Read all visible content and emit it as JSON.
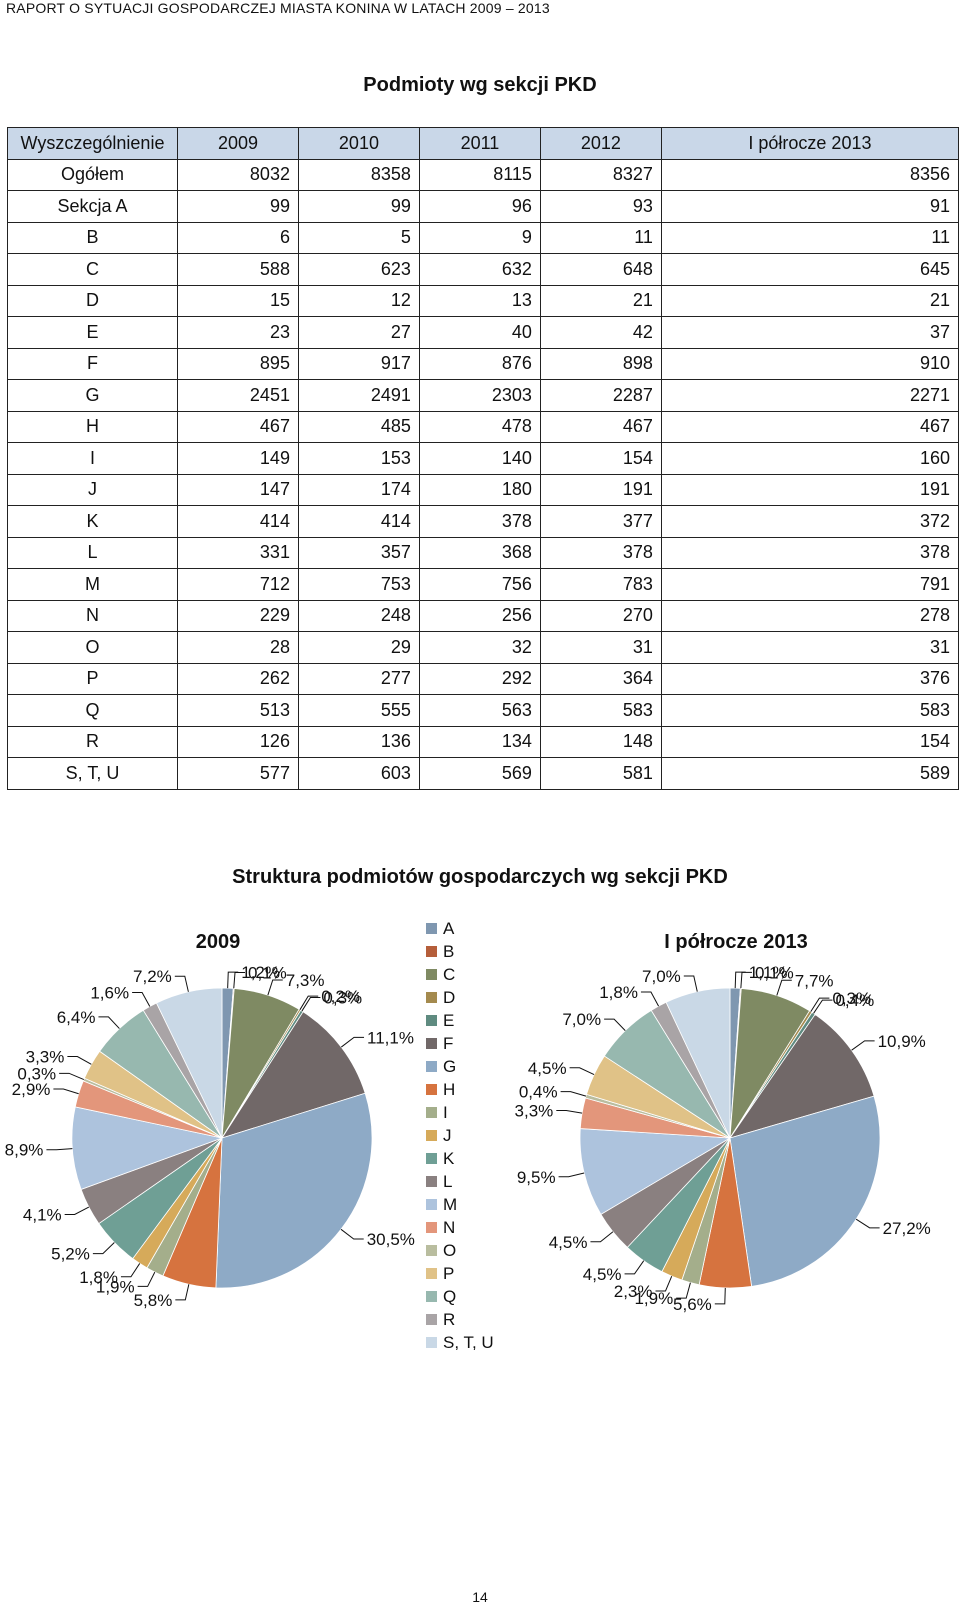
{
  "header": "RAPORT O SYTUACJI GOSPODARCZEJ MIASTA KONINA W LATACH 2009 – 2013",
  "table_title": "Podmioty wg sekcji PKD",
  "table": {
    "columns": [
      "Wyszczególnienie",
      "2009",
      "2010",
      "2011",
      "2012",
      "I półrocze 2013"
    ],
    "rows": [
      [
        "Ogółem",
        "8032",
        "8358",
        "8115",
        "8327",
        "8356"
      ],
      [
        "Sekcja A",
        "99",
        "99",
        "96",
        "93",
        "91"
      ],
      [
        "B",
        "6",
        "5",
        "9",
        "11",
        "11"
      ],
      [
        "C",
        "588",
        "623",
        "632",
        "648",
        "645"
      ],
      [
        "D",
        "15",
        "12",
        "13",
        "21",
        "21"
      ],
      [
        "E",
        "23",
        "27",
        "40",
        "42",
        "37"
      ],
      [
        "F",
        "895",
        "917",
        "876",
        "898",
        "910"
      ],
      [
        "G",
        "2451",
        "2491",
        "2303",
        "2287",
        "2271"
      ],
      [
        "H",
        "467",
        "485",
        "478",
        "467",
        "467"
      ],
      [
        "I",
        "149",
        "153",
        "140",
        "154",
        "160"
      ],
      [
        "J",
        "147",
        "174",
        "180",
        "191",
        "191"
      ],
      [
        "K",
        "414",
        "414",
        "378",
        "377",
        "372"
      ],
      [
        "L",
        "331",
        "357",
        "368",
        "378",
        "378"
      ],
      [
        "M",
        "712",
        "753",
        "756",
        "783",
        "791"
      ],
      [
        "N",
        "229",
        "248",
        "256",
        "270",
        "278"
      ],
      [
        "O",
        "28",
        "29",
        "32",
        "31",
        "31"
      ],
      [
        "P",
        "262",
        "277",
        "292",
        "364",
        "376"
      ],
      [
        "Q",
        "513",
        "555",
        "563",
        "583",
        "583"
      ],
      [
        "R",
        "126",
        "136",
        "134",
        "148",
        "154"
      ],
      [
        "S, T, U",
        "577",
        "603",
        "569",
        "581",
        "589"
      ]
    ]
  },
  "chart_title": "Struktura podmiotów gospodarczych wg sekcji PKD",
  "chart_data": [
    {
      "type": "pie",
      "title": "2009",
      "categories": [
        "A",
        "B",
        "C",
        "D",
        "E",
        "F",
        "G",
        "H",
        "I",
        "J",
        "K",
        "L",
        "M",
        "N",
        "O",
        "P",
        "Q",
        "R",
        "S, T, U"
      ],
      "values": [
        1.2,
        0.1,
        7.3,
        0.2,
        0.3,
        11.1,
        30.5,
        5.8,
        1.9,
        1.8,
        5.2,
        4.1,
        8.9,
        2.9,
        0.3,
        3.3,
        6.4,
        1.6,
        7.2
      ],
      "data_labels": [
        "1,2%",
        "0,1%",
        "7,3%",
        "0,2%",
        "0,3%",
        "11,1%",
        "30,5%",
        "5,8%",
        "1,9%",
        "1,8%",
        "5,2%",
        "4,1%",
        "8,9%",
        "2,9%",
        "0,3%",
        "3,3%",
        "6,4%",
        "1,6%",
        "7,2%"
      ]
    },
    {
      "type": "pie",
      "title": "I półrocze 2013",
      "categories": [
        "A",
        "B",
        "C",
        "D",
        "E",
        "F",
        "G",
        "H",
        "I",
        "J",
        "K",
        "L",
        "M",
        "N",
        "O",
        "P",
        "Q",
        "R",
        "S, T, U"
      ],
      "values": [
        1.1,
        0.1,
        7.7,
        0.3,
        0.4,
        10.9,
        27.2,
        5.6,
        1.9,
        2.3,
        4.5,
        4.5,
        9.5,
        3.3,
        0.4,
        4.5,
        7.0,
        1.8,
        7.0
      ],
      "data_labels": [
        "1,1%",
        "0,1%",
        "7,7%",
        "0,3%",
        "0,4%",
        "10,9%",
        "27,2%",
        "5,6%",
        "1,9%",
        "2,3%",
        "4,5%",
        "4,5%",
        "9,5%",
        "3,3%",
        "0,4%",
        "4,5%",
        "7,0%",
        "1,8%",
        "7,0%"
      ]
    }
  ],
  "legend": {
    "labels": [
      "A",
      "B",
      "C",
      "D",
      "E",
      "F",
      "G",
      "H",
      "I",
      "J",
      "K",
      "L",
      "M",
      "N",
      "O",
      "P",
      "Q",
      "R",
      "S, T, U"
    ],
    "colors": [
      "#7f97b0",
      "#b55e3a",
      "#7f8a63",
      "#a48a4e",
      "#5f8b80",
      "#716868",
      "#8eaac6",
      "#d6733f",
      "#a4ae8b",
      "#d6aa5a",
      "#6f9f95",
      "#8a8080",
      "#adc3dd",
      "#e3967b",
      "#b9bd9f",
      "#e0c287",
      "#97b8af",
      "#a9a4a6",
      "#c9d8e6"
    ]
  },
  "page_number": "14"
}
